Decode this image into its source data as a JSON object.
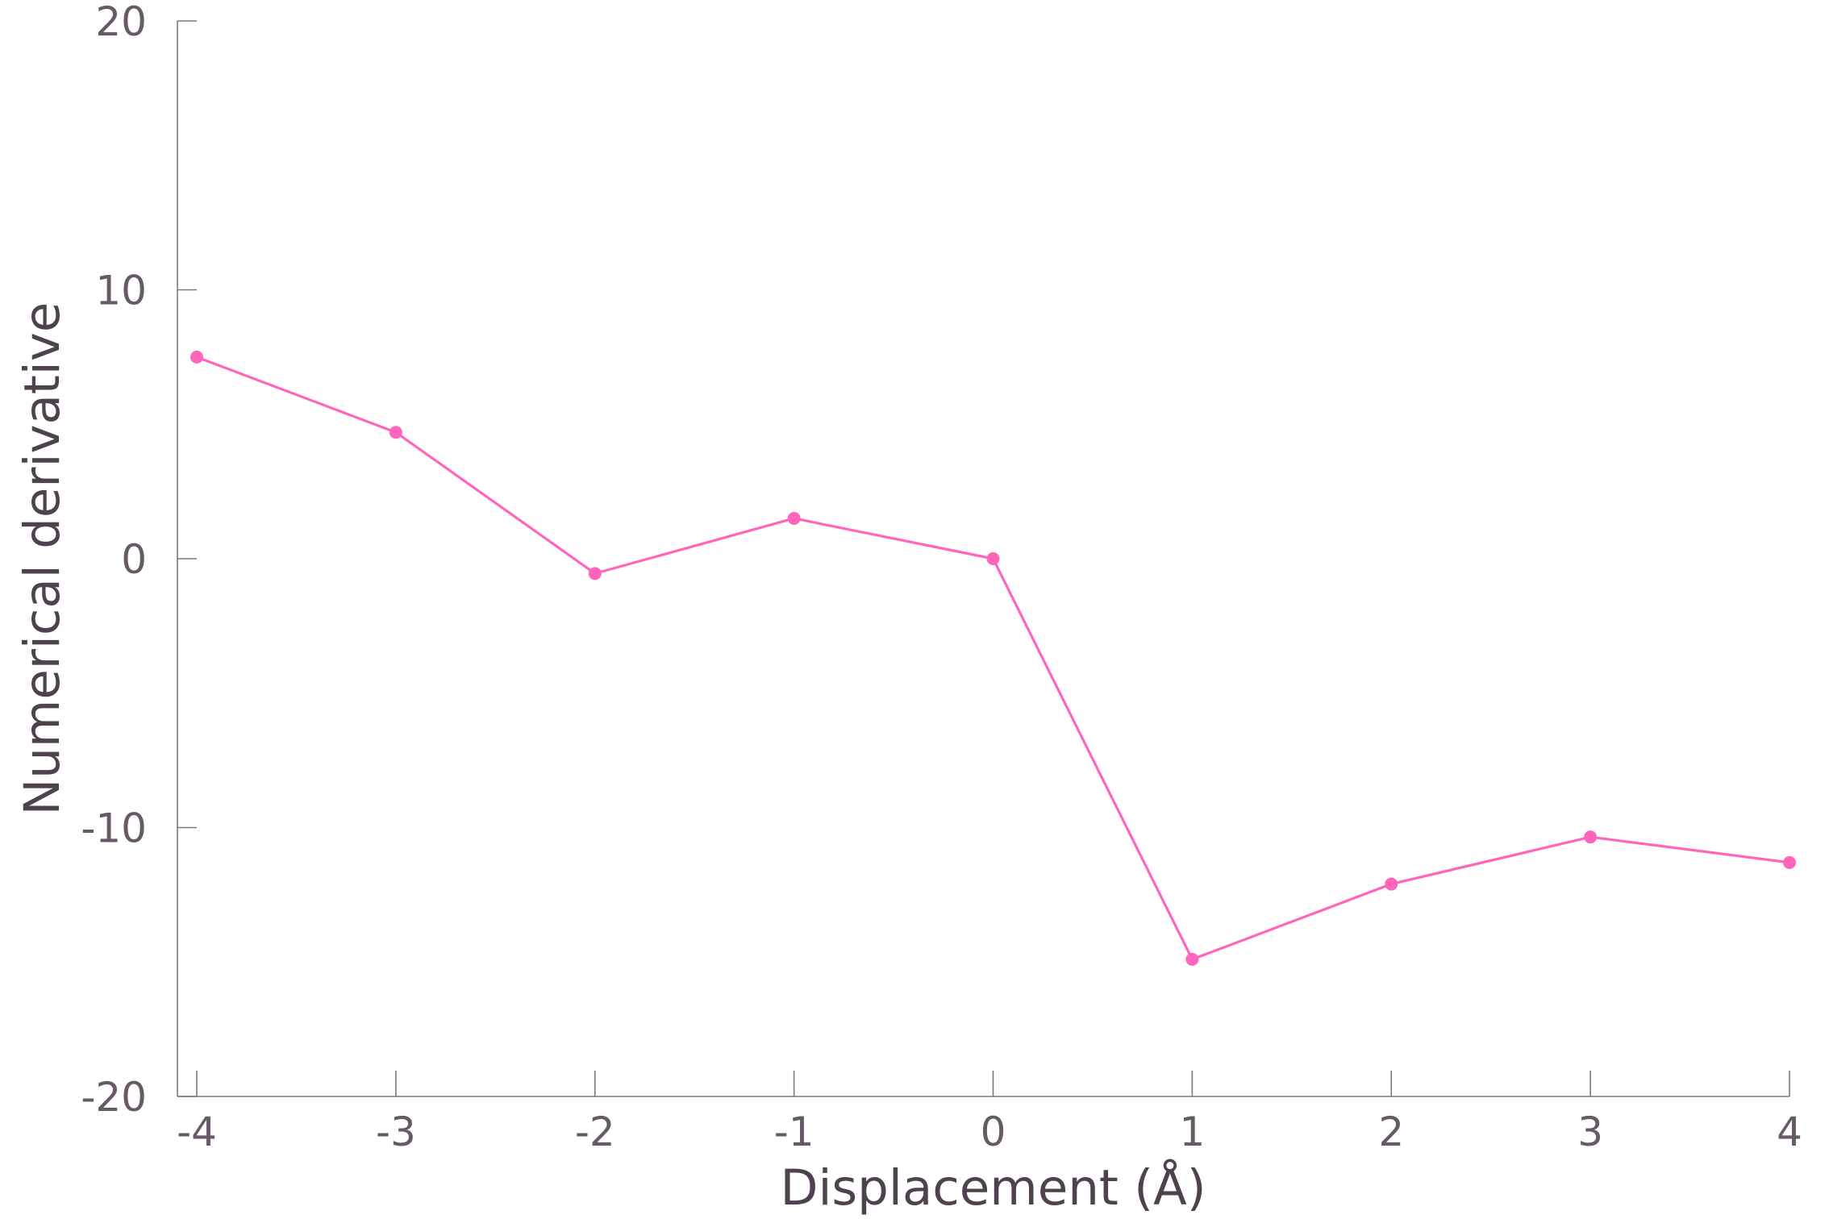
{
  "chart_data": {
    "type": "line",
    "xlabel": "Displacement (Å)",
    "ylabel": "Numerical derivative",
    "xlim": [
      -4,
      4
    ],
    "ylim": [
      -20,
      20
    ],
    "x_ticks": [
      -4,
      -3,
      -2,
      -1,
      0,
      1,
      2,
      3,
      4
    ],
    "x_tick_labels": [
      "-4",
      "-3",
      "-2",
      "-1",
      "0",
      "1",
      "2",
      "3",
      "4"
    ],
    "y_ticks": [
      -20,
      -10,
      0,
      10,
      20
    ],
    "y_tick_labels": [
      "-20",
      "-10",
      "0",
      "10",
      "20"
    ],
    "grid": false,
    "legend": "none",
    "series": [
      {
        "color": "#ff66bb",
        "x": [
          -4,
          -3,
          -2,
          -1,
          0,
          1,
          2,
          3,
          4
        ],
        "y": [
          7.5,
          4.7,
          -0.55,
          1.5,
          0.0,
          -14.9,
          -12.1,
          -10.35,
          -11.3
        ]
      }
    ]
  }
}
